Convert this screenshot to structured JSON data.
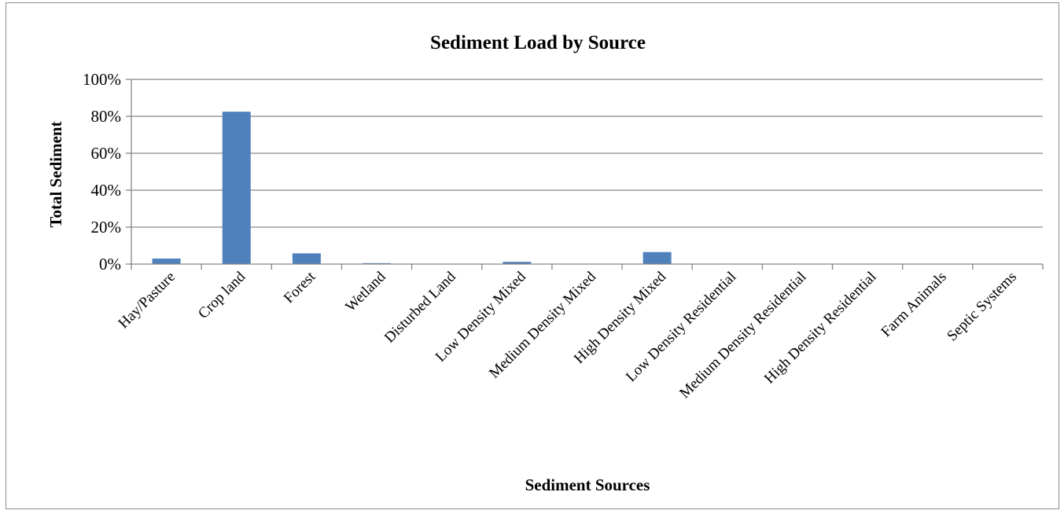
{
  "chart_data": {
    "type": "bar",
    "title": "Sediment Load by Source",
    "xlabel": "Sediment Sources",
    "ylabel": "Total Sediment",
    "ylim": [
      0,
      100
    ],
    "y_ticks": [
      "0%",
      "20%",
      "40%",
      "60%",
      "80%",
      "100%"
    ],
    "y_tick_values": [
      0,
      20,
      40,
      60,
      80,
      100
    ],
    "grid": true,
    "legend": "none",
    "categories": [
      "Hay/Pasture",
      "Crop land",
      "Forest",
      "Wetland",
      "Disturbed Land",
      "Low Density Mixed",
      "Medium Density Mixed",
      "High Density Mixed",
      "Low Density Residential",
      "Medium Density Residential",
      "High Density Residential",
      "Farm Animals",
      "Septic Systems"
    ],
    "values": [
      3.0,
      82.5,
      5.8,
      0.5,
      0,
      1.2,
      0,
      6.5,
      0,
      0,
      0,
      0,
      0
    ],
    "colors": {
      "bar": "#4f81bd",
      "grid": "#868686",
      "axis": "#868686"
    }
  }
}
